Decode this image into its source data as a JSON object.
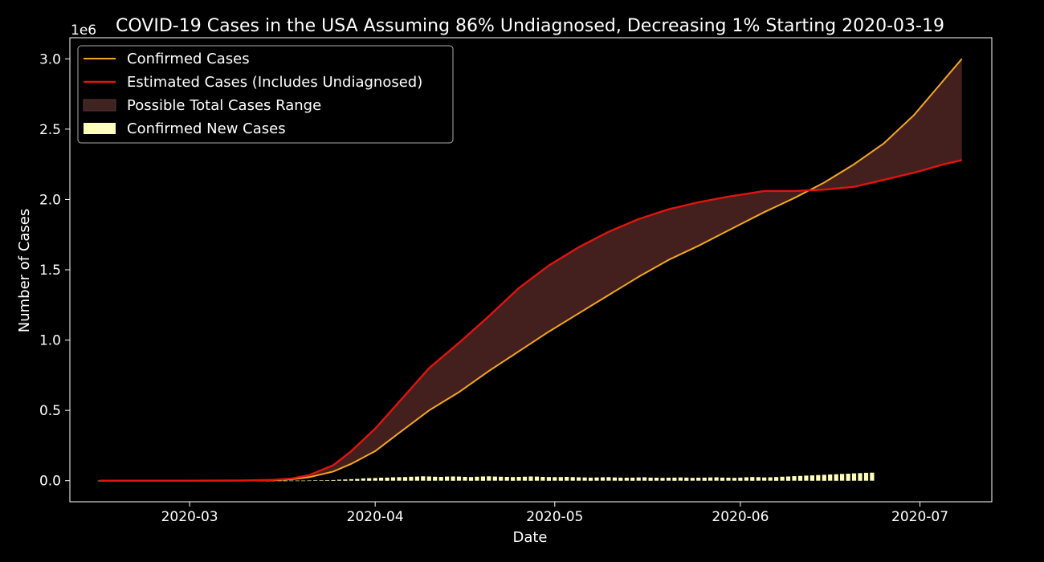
{
  "chart_data": {
    "type": "line",
    "title": "COVID-19 Cases in the USA Assuming 86% Undiagnosed, Decreasing 1% Starting 2020-03-19",
    "xlabel": "Date",
    "ylabel": "Number of Cases",
    "y_offset_text": "1e6",
    "x_ticks": [
      "2020-03",
      "2020-04",
      "2020-05",
      "2020-06",
      "2020-07"
    ],
    "x_tick_dates": [
      "2020-03-01",
      "2020-04-01",
      "2020-05-01",
      "2020-06-01",
      "2020-07-01"
    ],
    "y_ticks": [
      0.0,
      0.5,
      1.0,
      1.5,
      2.0,
      2.5,
      3.0
    ],
    "y_tick_labels": [
      "0.0",
      "0.5",
      "1.0",
      "1.5",
      "2.0",
      "2.5",
      "3.0"
    ],
    "xlim": [
      "2020-02-10",
      "2020-07-13"
    ],
    "ylim": [
      -0.15,
      3.15
    ],
    "grid": false,
    "legend_position": "top-left",
    "legend": [
      {
        "label": "Confirmed Cases",
        "kind": "line",
        "color": "#f5a623"
      },
      {
        "label": "Estimated Cases (Includes Undiagnosed)",
        "kind": "line",
        "color": "#e0140f"
      },
      {
        "label": "Possible Total Cases Range",
        "kind": "patch",
        "color": "#3f2320"
      },
      {
        "label": "Confirmed New Cases",
        "kind": "bar",
        "color": "#ffffbb"
      }
    ],
    "colors": {
      "background": "#000000",
      "axes": "#ffffff",
      "confirmed": "#f5a623",
      "estimated": "#e0140f",
      "range_fill": "#4a2420",
      "new_cases": "#ffffbb"
    },
    "series": [
      {
        "name": "Confirmed Cases",
        "unit": "millions",
        "points": [
          [
            "2020-02-15",
            0.0
          ],
          [
            "2020-03-01",
            0.0
          ],
          [
            "2020-03-10",
            0.001
          ],
          [
            "2020-03-15",
            0.003
          ],
          [
            "2020-03-18",
            0.01
          ],
          [
            "2020-03-21",
            0.025
          ],
          [
            "2020-03-25",
            0.065
          ],
          [
            "2020-03-28",
            0.12
          ],
          [
            "2020-04-01",
            0.21
          ],
          [
            "2020-04-05",
            0.34
          ],
          [
            "2020-04-10",
            0.5
          ],
          [
            "2020-04-15",
            0.63
          ],
          [
            "2020-04-20",
            0.78
          ],
          [
            "2020-04-25",
            0.92
          ],
          [
            "2020-04-30",
            1.06
          ],
          [
            "2020-05-05",
            1.19
          ],
          [
            "2020-05-10",
            1.32
          ],
          [
            "2020-05-15",
            1.45
          ],
          [
            "2020-05-20",
            1.57
          ],
          [
            "2020-05-25",
            1.67
          ],
          [
            "2020-05-30",
            1.78
          ],
          [
            "2020-06-05",
            1.91
          ],
          [
            "2020-06-10",
            2.01
          ],
          [
            "2020-06-15",
            2.12
          ],
          [
            "2020-06-20",
            2.25
          ],
          [
            "2020-06-25",
            2.4
          ],
          [
            "2020-06-30",
            2.6
          ],
          [
            "2020-07-05",
            2.85
          ],
          [
            "2020-07-08",
            3.0
          ]
        ]
      },
      {
        "name": "Estimated Cases (Includes Undiagnosed)",
        "unit": "millions",
        "points": [
          [
            "2020-02-15",
            0.0
          ],
          [
            "2020-03-01",
            0.0
          ],
          [
            "2020-03-10",
            0.002
          ],
          [
            "2020-03-15",
            0.006
          ],
          [
            "2020-03-18",
            0.015
          ],
          [
            "2020-03-21",
            0.04
          ],
          [
            "2020-03-25",
            0.11
          ],
          [
            "2020-03-28",
            0.21
          ],
          [
            "2020-04-01",
            0.37
          ],
          [
            "2020-04-05",
            0.56
          ],
          [
            "2020-04-10",
            0.8
          ],
          [
            "2020-04-15",
            0.98
          ],
          [
            "2020-04-20",
            1.17
          ],
          [
            "2020-04-25",
            1.37
          ],
          [
            "2020-04-30",
            1.53
          ],
          [
            "2020-05-05",
            1.66
          ],
          [
            "2020-05-10",
            1.77
          ],
          [
            "2020-05-15",
            1.86
          ],
          [
            "2020-05-20",
            1.93
          ],
          [
            "2020-05-25",
            1.98
          ],
          [
            "2020-05-30",
            2.02
          ],
          [
            "2020-06-05",
            2.06
          ],
          [
            "2020-06-10",
            2.06
          ],
          [
            "2020-06-15",
            2.07
          ],
          [
            "2020-06-20",
            2.09
          ],
          [
            "2020-06-25",
            2.14
          ],
          [
            "2020-06-30",
            2.19
          ],
          [
            "2020-07-05",
            2.25
          ],
          [
            "2020-07-08",
            2.28
          ]
        ]
      }
    ],
    "new_cases": {
      "name": "Confirmed New Cases",
      "unit": "millions",
      "start_date": "2020-02-15",
      "values": [
        0,
        0,
        0,
        0,
        0,
        0,
        0,
        0,
        0,
        0,
        0,
        0,
        0,
        0,
        0,
        0,
        0,
        0,
        0,
        0,
        0,
        0,
        0,
        0,
        0,
        0,
        0,
        0,
        0,
        0,
        0.0002,
        0.0003,
        0.0005,
        0.0008,
        0.001,
        0.0015,
        0.002,
        0.003,
        0.004,
        0.005,
        0.007,
        0.009,
        0.011,
        0.013,
        0.016,
        0.018,
        0.019,
        0.021,
        0.022,
        0.024,
        0.025,
        0.026,
        0.028,
        0.029,
        0.031,
        0.03,
        0.028,
        0.027,
        0.029,
        0.03,
        0.029,
        0.027,
        0.026,
        0.028,
        0.03,
        0.031,
        0.029,
        0.028,
        0.027,
        0.026,
        0.027,
        0.028,
        0.03,
        0.029,
        0.027,
        0.026,
        0.025,
        0.026,
        0.027,
        0.025,
        0.024,
        0.023,
        0.022,
        0.023,
        0.024,
        0.025,
        0.023,
        0.022,
        0.021,
        0.022,
        0.023,
        0.024,
        0.022,
        0.021,
        0.02,
        0.021,
        0.022,
        0.023,
        0.022,
        0.02,
        0.021,
        0.022,
        0.023,
        0.024,
        0.022,
        0.021,
        0.02,
        0.022,
        0.024,
        0.026,
        0.025,
        0.023,
        0.024,
        0.026,
        0.028,
        0.03,
        0.032,
        0.034,
        0.036,
        0.038,
        0.04,
        0.042,
        0.044,
        0.046,
        0.048,
        0.05,
        0.052,
        0.054,
        0.056,
        0.057
      ]
    }
  }
}
